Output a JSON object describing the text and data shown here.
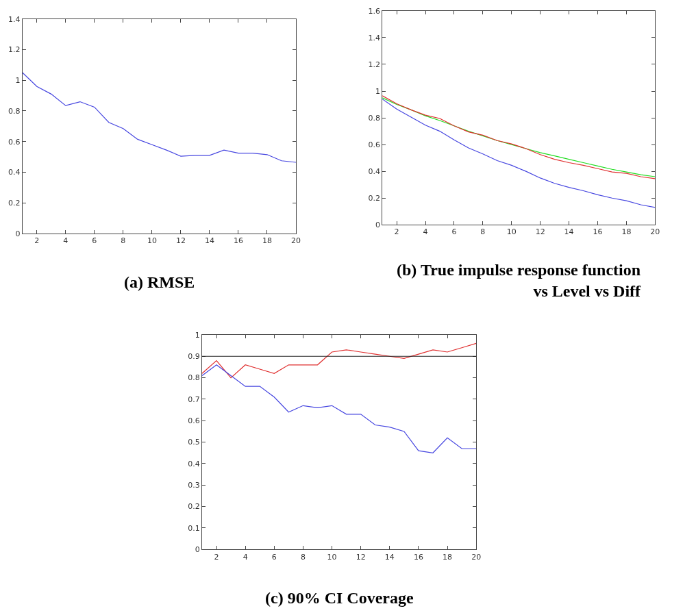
{
  "chart_data": [
    {
      "type": "line",
      "title": "(a) RMSE",
      "x": [
        1,
        2,
        3,
        4,
        5,
        6,
        7,
        8,
        9,
        10,
        11,
        12,
        13,
        14,
        15,
        16,
        17,
        18,
        19,
        20
      ],
      "xlim": [
        1,
        20
      ],
      "xticks": [
        2,
        4,
        6,
        8,
        10,
        12,
        14,
        16,
        18,
        20
      ],
      "ylim": [
        0,
        1.4
      ],
      "yticks": [
        0,
        0.2,
        0.4,
        0.6,
        0.8,
        1,
        1.2,
        1.4
      ],
      "series": [
        {
          "color": "#4646e0",
          "values": [
            1.05,
            0.96,
            0.91,
            0.835,
            0.86,
            0.825,
            0.725,
            0.685,
            0.615,
            0.58,
            0.545,
            0.505,
            0.51,
            0.51,
            0.545,
            0.525,
            0.525,
            0.515,
            0.475,
            0.465
          ]
        }
      ]
    },
    {
      "type": "line",
      "title": "(b) True impulse response function vs Level vs Diff",
      "x": [
        1,
        2,
        3,
        4,
        5,
        6,
        7,
        8,
        9,
        10,
        11,
        12,
        13,
        14,
        15,
        16,
        17,
        18,
        19,
        20
      ],
      "xlim": [
        1,
        20
      ],
      "xticks": [
        2,
        4,
        6,
        8,
        10,
        12,
        14,
        16,
        18,
        20
      ],
      "ylim": [
        0,
        1.6
      ],
      "yticks": [
        0,
        0.2,
        0.4,
        0.6,
        0.8,
        1,
        1.2,
        1.4,
        1.6
      ],
      "series": [
        {
          "color": "#22dd22",
          "values": [
            0.95,
            0.9,
            0.86,
            0.815,
            0.78,
            0.74,
            0.7,
            0.665,
            0.63,
            0.6,
            0.57,
            0.54,
            0.515,
            0.49,
            0.465,
            0.44,
            0.415,
            0.395,
            0.375,
            0.36
          ]
        },
        {
          "color": "#e03030",
          "values": [
            0.965,
            0.905,
            0.86,
            0.82,
            0.795,
            0.74,
            0.695,
            0.67,
            0.63,
            0.605,
            0.57,
            0.525,
            0.49,
            0.465,
            0.445,
            0.42,
            0.395,
            0.385,
            0.36,
            0.345
          ]
        },
        {
          "color": "#4646e0",
          "values": [
            0.94,
            0.865,
            0.805,
            0.745,
            0.7,
            0.635,
            0.575,
            0.53,
            0.48,
            0.445,
            0.4,
            0.35,
            0.31,
            0.28,
            0.255,
            0.225,
            0.2,
            0.18,
            0.15,
            0.13
          ]
        }
      ]
    },
    {
      "type": "line",
      "title": "(c) 90% CI Coverage",
      "x": [
        1,
        2,
        3,
        4,
        5,
        6,
        7,
        8,
        9,
        10,
        11,
        12,
        13,
        14,
        15,
        16,
        17,
        18,
        19,
        20
      ],
      "xlim": [
        1,
        20
      ],
      "xticks": [
        2,
        4,
        6,
        8,
        10,
        12,
        14,
        16,
        18,
        20
      ],
      "ylim": [
        0,
        1
      ],
      "yticks": [
        0,
        0.1,
        0.2,
        0.3,
        0.4,
        0.5,
        0.6,
        0.7,
        0.8,
        0.9,
        1
      ],
      "ref_lines": [
        {
          "axis": "y",
          "value": 0.9,
          "color": "#222222"
        }
      ],
      "series": [
        {
          "color": "#e03030",
          "values": [
            0.82,
            0.88,
            0.8,
            0.86,
            0.84,
            0.82,
            0.86,
            0.86,
            0.86,
            0.92,
            0.93,
            0.92,
            0.91,
            0.9,
            0.89,
            0.91,
            0.93,
            0.92,
            0.94,
            0.96
          ]
        },
        {
          "color": "#4646e0",
          "values": [
            0.81,
            0.86,
            0.81,
            0.76,
            0.76,
            0.71,
            0.64,
            0.67,
            0.66,
            0.67,
            0.63,
            0.63,
            0.58,
            0.57,
            0.55,
            0.46,
            0.45,
            0.52,
            0.47,
            0.47
          ]
        }
      ]
    }
  ]
}
